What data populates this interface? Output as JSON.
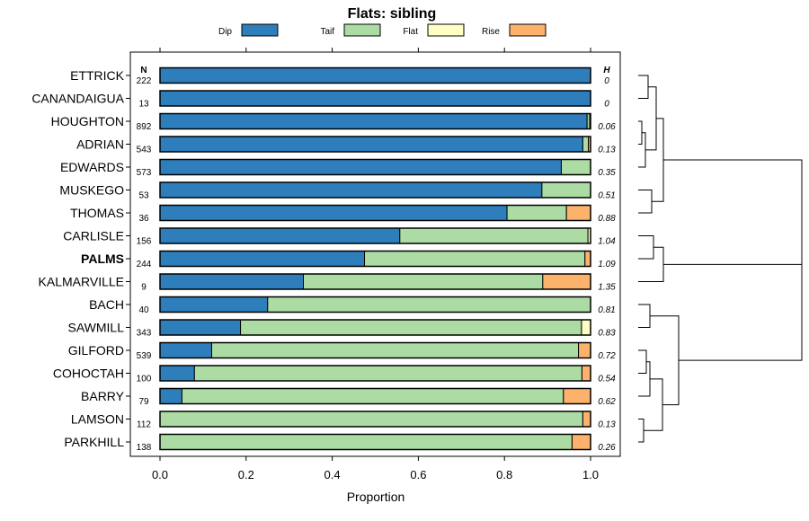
{
  "chart_data": {
    "type": "bar",
    "stacked": true,
    "orientation": "horizontal",
    "title": "Flats: sibling",
    "xlabel": "Proportion",
    "ylabel": "",
    "xlim": [
      0,
      1
    ],
    "xticks": [
      "0.0",
      "0.2",
      "0.4",
      "0.6",
      "0.8",
      "1.0"
    ],
    "legend_placement": "top",
    "n_header": "N",
    "h_header": "H",
    "highlight": "PALMS",
    "categories": [
      "ETTRICK",
      "CANANDAIGUA",
      "HOUGHTON",
      "ADRIAN",
      "EDWARDS",
      "MUSKEGO",
      "THOMAS",
      "CARLISLE",
      "PALMS",
      "KALMARVILLE",
      "BACH",
      "SAWMILL",
      "GILFORD",
      "COHOCTAH",
      "BARRY",
      "LAMSON",
      "PARKHILL"
    ],
    "n": [
      "222",
      "13",
      "892",
      "543",
      "573",
      "53",
      "36",
      "156",
      "244",
      "9",
      "40",
      "343",
      "539",
      "100",
      "79",
      "112",
      "138"
    ],
    "h": [
      "0",
      "0",
      "0.06",
      "0.13",
      "0.35",
      "0.51",
      "0.88",
      "1.04",
      "1.09",
      "1.35",
      "0.81",
      "0.83",
      "0.72",
      "0.54",
      "0.62",
      "0.13",
      "0.26"
    ],
    "series": [
      {
        "name": "Dip",
        "color": "#2e7ebc",
        "values": [
          1.0,
          1.0,
          0.992,
          0.982,
          0.932,
          0.887,
          0.806,
          0.557,
          0.475,
          0.333,
          0.25,
          0.187,
          0.12,
          0.08,
          0.051,
          0.0,
          0.0
        ]
      },
      {
        "name": "Taif",
        "color": "#acdba4",
        "values": [
          0.0,
          0.0,
          0.006,
          0.013,
          0.068,
          0.113,
          0.138,
          0.437,
          0.512,
          0.556,
          0.75,
          0.792,
          0.852,
          0.9,
          0.886,
          0.982,
          0.957
        ]
      },
      {
        "name": "Flat",
        "color": "#ffffc3",
        "values": [
          0.0,
          0.0,
          0.002,
          0.0,
          0.0,
          0.0,
          0.0,
          0.006,
          0.0,
          0.0,
          0.0,
          0.021,
          0.0,
          0.0,
          0.0,
          0.0,
          0.0
        ]
      },
      {
        "name": "Rise",
        "color": "#fcb26a",
        "values": [
          0.0,
          0.0,
          0.0,
          0.005,
          0.0,
          0.0,
          0.056,
          0.0,
          0.013,
          0.111,
          0.0,
          0.0,
          0.028,
          0.02,
          0.063,
          0.018,
          0.043
        ]
      }
    ]
  }
}
